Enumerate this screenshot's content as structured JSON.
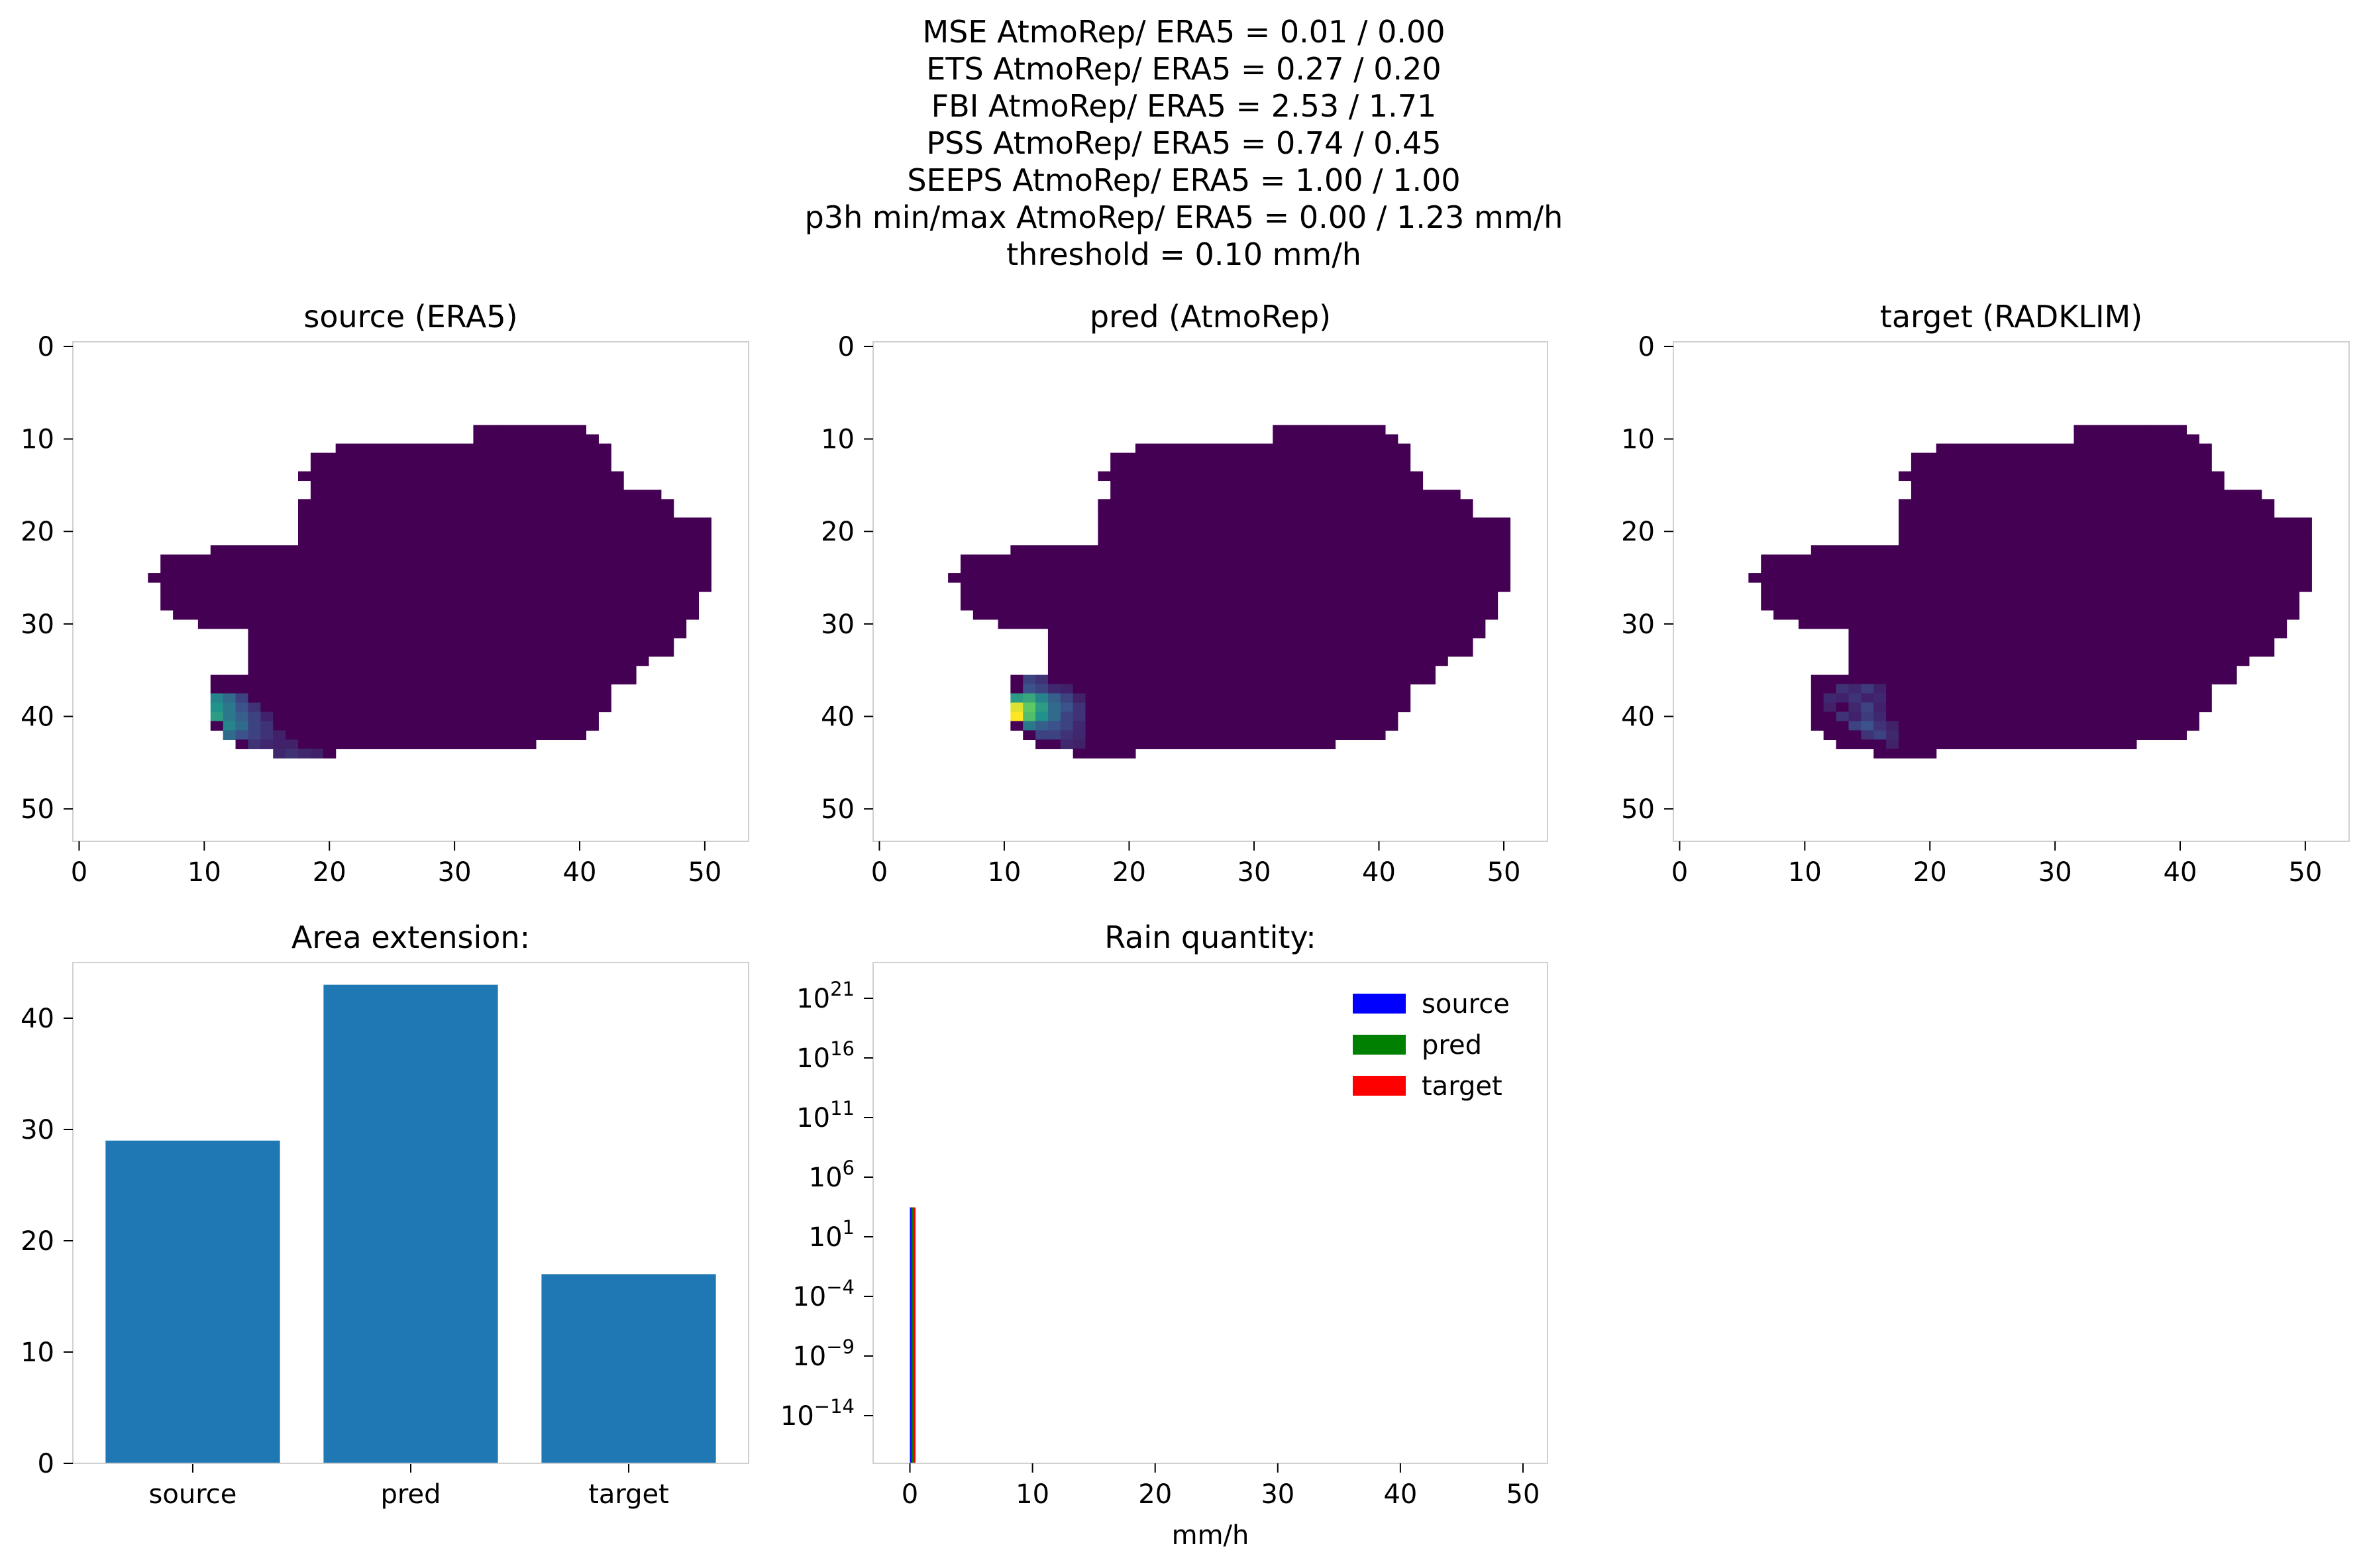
{
  "figure": {
    "suptitle": [
      "MSE AtmoRep/ ERA5 = 0.01 / 0.00",
      "ETS AtmoRep/ ERA5 = 0.27 / 0.20",
      "FBI AtmoRep/ ERA5 = 2.53 / 1.71",
      "PSS AtmoRep/ ERA5 = 0.74 / 0.45",
      "SEEPS AtmoRep/ ERA5 = 1.00 / 1.00",
      "p3h min/max AtmoRep/ ERA5 = 0.00 / 1.23 mm/h",
      "threshold = 0.10 mm/h"
    ]
  },
  "chart_data": [
    {
      "type": "heatmap",
      "title": "source (ERA5)",
      "xlim": [
        -0.5,
        53.5
      ],
      "ylim": [
        53.5,
        -0.5
      ],
      "xticks": [
        0,
        10,
        20,
        30,
        40,
        50
      ],
      "yticks": [
        0,
        10,
        20,
        30,
        40,
        50
      ],
      "colormap": "viridis",
      "background_value": 0,
      "hotspot": [
        [
          38,
          11,
          0.45
        ],
        [
          38,
          12,
          0.35
        ],
        [
          38,
          13,
          0.2
        ],
        [
          39,
          11,
          0.5
        ],
        [
          39,
          12,
          0.4
        ],
        [
          39,
          13,
          0.25
        ],
        [
          39,
          14,
          0.15
        ],
        [
          40,
          11,
          0.55
        ],
        [
          40,
          12,
          0.4
        ],
        [
          40,
          13,
          0.3
        ],
        [
          40,
          14,
          0.2
        ],
        [
          40,
          15,
          0.1
        ],
        [
          41,
          12,
          0.45
        ],
        [
          41,
          13,
          0.35
        ],
        [
          41,
          14,
          0.2
        ],
        [
          41,
          15,
          0.15
        ],
        [
          42,
          12,
          0.35
        ],
        [
          42,
          13,
          0.25
        ],
        [
          42,
          14,
          0.2
        ],
        [
          42,
          15,
          0.15
        ],
        [
          42,
          16,
          0.1
        ],
        [
          43,
          14,
          0.15
        ],
        [
          43,
          15,
          0.12
        ],
        [
          43,
          16,
          0.1
        ],
        [
          43,
          17,
          0.1
        ],
        [
          44,
          14,
          0.1
        ],
        [
          44,
          16,
          0.12
        ],
        [
          44,
          17,
          0.15
        ],
        [
          44,
          18,
          0.12
        ],
        [
          44,
          19,
          0.1
        ]
      ]
    },
    {
      "type": "heatmap",
      "title": "pred (AtmoRep)",
      "xlim": [
        -0.5,
        53.5
      ],
      "ylim": [
        53.5,
        -0.5
      ],
      "xticks": [
        0,
        10,
        20,
        30,
        40,
        50
      ],
      "yticks": [
        0,
        10,
        20,
        30,
        40,
        50
      ],
      "colormap": "viridis",
      "background_value": 0,
      "hotspot": [
        [
          36,
          12,
          0.2
        ],
        [
          36,
          13,
          0.15
        ],
        [
          37,
          12,
          0.25
        ],
        [
          37,
          13,
          0.2
        ],
        [
          37,
          14,
          0.12
        ],
        [
          37,
          15,
          0.1
        ],
        [
          38,
          11,
          0.55
        ],
        [
          38,
          12,
          0.6
        ],
        [
          38,
          13,
          0.45
        ],
        [
          38,
          14,
          0.3
        ],
        [
          38,
          15,
          0.2
        ],
        [
          38,
          16,
          0.1
        ],
        [
          39,
          11,
          0.95
        ],
        [
          39,
          12,
          0.75
        ],
        [
          39,
          13,
          0.55
        ],
        [
          39,
          14,
          0.35
        ],
        [
          39,
          15,
          0.25
        ],
        [
          39,
          16,
          0.15
        ],
        [
          40,
          11,
          1.0
        ],
        [
          40,
          12,
          0.7
        ],
        [
          40,
          13,
          0.5
        ],
        [
          40,
          14,
          0.35
        ],
        [
          40,
          15,
          0.2
        ],
        [
          40,
          16,
          0.15
        ],
        [
          41,
          12,
          0.4
        ],
        [
          41,
          13,
          0.3
        ],
        [
          41,
          14,
          0.25
        ],
        [
          41,
          15,
          0.2
        ],
        [
          41,
          16,
          0.12
        ],
        [
          42,
          13,
          0.2
        ],
        [
          42,
          14,
          0.2
        ],
        [
          42,
          15,
          0.15
        ],
        [
          42,
          16,
          0.12
        ],
        [
          43,
          15,
          0.12
        ],
        [
          43,
          16,
          0.1
        ]
      ]
    },
    {
      "type": "heatmap",
      "title": "target (RADKLIM)",
      "xlim": [
        -0.5,
        53.5
      ],
      "ylim": [
        53.5,
        -0.5
      ],
      "xticks": [
        0,
        10,
        20,
        30,
        40,
        50
      ],
      "yticks": [
        0,
        10,
        20,
        30,
        40,
        50
      ],
      "colormap": "viridis",
      "background_value": 0,
      "hotspot": [
        [
          37,
          13,
          0.15
        ],
        [
          37,
          14,
          0.12
        ],
        [
          37,
          15,
          0.18
        ],
        [
          37,
          16,
          0.1
        ],
        [
          38,
          12,
          0.12
        ],
        [
          38,
          13,
          0.1
        ],
        [
          38,
          14,
          0.15
        ],
        [
          38,
          15,
          0.1
        ],
        [
          38,
          16,
          0.12
        ],
        [
          39,
          12,
          0.1
        ],
        [
          39,
          14,
          0.12
        ],
        [
          39,
          15,
          0.2
        ],
        [
          39,
          16,
          0.1
        ],
        [
          40,
          13,
          0.15
        ],
        [
          40,
          14,
          0.1
        ],
        [
          40,
          15,
          0.18
        ],
        [
          40,
          16,
          0.12
        ],
        [
          41,
          14,
          0.2
        ],
        [
          41,
          15,
          0.25
        ],
        [
          41,
          16,
          0.15
        ],
        [
          41,
          17,
          0.1
        ],
        [
          42,
          15,
          0.15
        ],
        [
          42,
          16,
          0.2
        ],
        [
          42,
          17,
          0.12
        ],
        [
          43,
          17,
          0.1
        ]
      ]
    },
    {
      "type": "bar",
      "title": "Area extension:",
      "categories": [
        "source",
        "pred",
        "target"
      ],
      "values": [
        29,
        43,
        17
      ],
      "ylim": [
        0,
        45
      ],
      "yticks": [
        0,
        10,
        20,
        30,
        40
      ],
      "color": "#1f77b4"
    },
    {
      "type": "bar",
      "title": "Rain quantity:",
      "xlabel": "mm/h",
      "xlim": [
        -3,
        52
      ],
      "xticks": [
        0,
        10,
        20,
        30,
        40,
        50
      ],
      "yscale": "log",
      "ylim_exp": [
        -18,
        24
      ],
      "yticks_exp": [
        -14,
        -9,
        -4,
        1,
        6,
        11,
        16,
        21
      ],
      "series": [
        {
          "name": "source",
          "color": "#0000ff",
          "x": 0.0,
          "value": 2916
        },
        {
          "name": "pred",
          "color": "#008000",
          "x": 0.12,
          "value": 2916
        },
        {
          "name": "target",
          "color": "#ff0000",
          "x": 0.24,
          "value": 2916
        }
      ],
      "legend": "top-right"
    }
  ]
}
